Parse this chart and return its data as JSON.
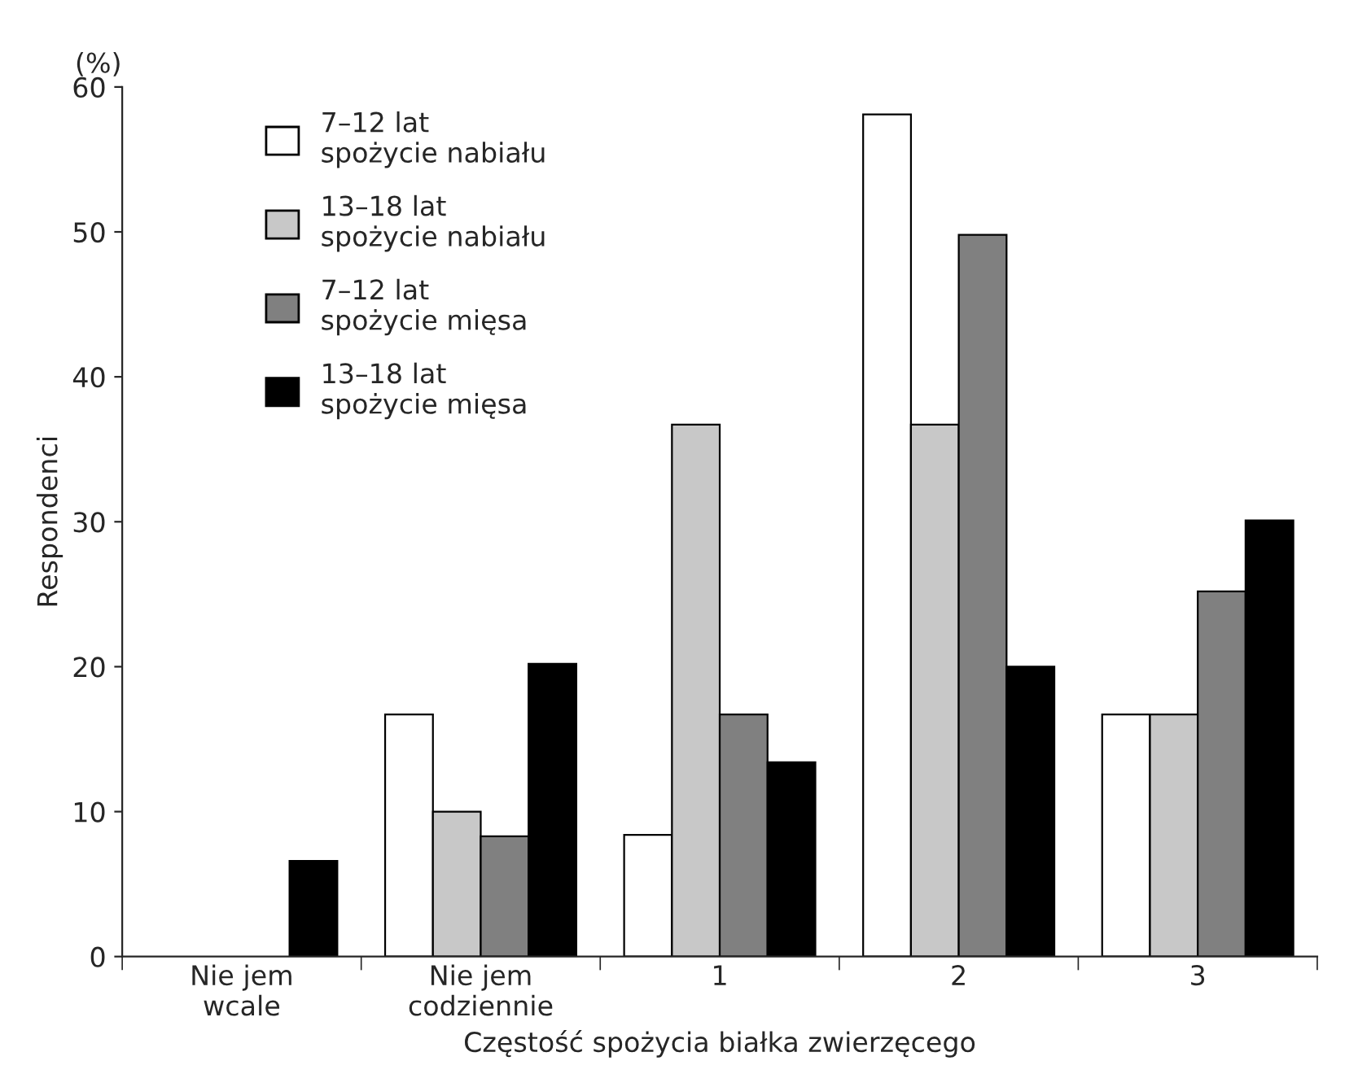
{
  "chart_data": {
    "type": "bar",
    "xlabel": "Częstość spożycia białka zwierzęcego",
    "ylabel": "Respondenci",
    "annotations": [
      "(%)"
    ],
    "categories": [
      "Nie jem\nwcale",
      "Nie jem\ncodziennie",
      "1",
      "2",
      "3"
    ],
    "series": [
      {
        "name": "7–12 lat\nspożycie nabiału",
        "color": "#ffffff",
        "values": [
          null,
          16.7,
          8.4,
          58.1,
          16.7
        ]
      },
      {
        "name": "13–18 lat\nspożycie nabiału",
        "color": "#c8c8c8",
        "values": [
          null,
          10.0,
          36.7,
          36.7,
          16.7
        ]
      },
      {
        "name": "7–12 lat\nspożycie mięsa",
        "color": "#808080",
        "values": [
          null,
          8.3,
          16.7,
          49.8,
          25.2
        ]
      },
      {
        "name": "13–18 lat\nspożycie mięsa",
        "color": "#000000",
        "values": [
          6.6,
          20.2,
          13.4,
          20.0,
          30.1
        ]
      }
    ],
    "ylim": [
      0,
      60
    ],
    "yticks": [
      0,
      10,
      20,
      30,
      40,
      50,
      60
    ],
    "grid": false,
    "legend": "top left"
  }
}
